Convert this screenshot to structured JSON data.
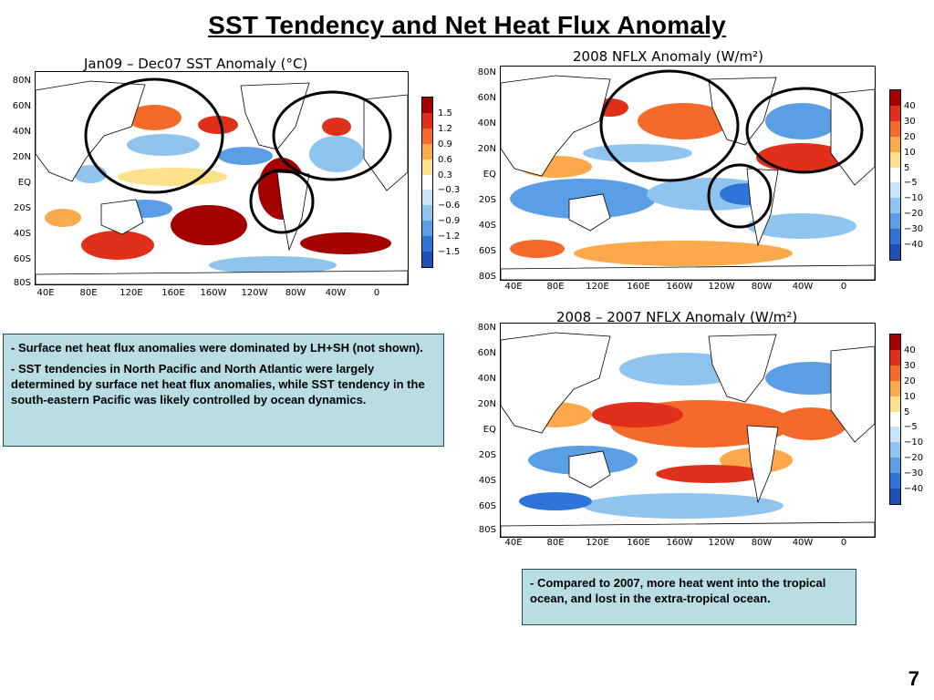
{
  "slide": {
    "title": "SST Tendency and Net Heat Flux Anomaly",
    "page_number": "7"
  },
  "maps": {
    "sst": {
      "title": "Jan09 – Dec07 SST Anomaly (°C)",
      "yticks": [
        "80N",
        "60N",
        "40N",
        "20N",
        "EQ",
        "20S",
        "40S",
        "60S",
        "80S"
      ],
      "xticks": [
        "40E",
        "80E",
        "120E",
        "160E",
        "160W",
        "120W",
        "80W",
        "40W",
        "0"
      ],
      "colorbar_labels": [
        "1.5",
        "1.2",
        "0.9",
        "0.6",
        "0.3",
        "−0.3",
        "−0.6",
        "−0.9",
        "−1.2",
        "−1.5"
      ]
    },
    "nflx2008": {
      "title": "2008 NFLX Anomaly (W/m²)",
      "yticks": [
        "80N",
        "60N",
        "40N",
        "20N",
        "EQ",
        "20S",
        "40S",
        "60S",
        "80S"
      ],
      "xticks": [
        "40E",
        "80E",
        "120E",
        "160E",
        "160W",
        "120W",
        "80W",
        "40W",
        "0"
      ],
      "colorbar_labels": [
        "40",
        "30",
        "20",
        "10",
        "5",
        "−5",
        "−10",
        "−20",
        "−30",
        "−40"
      ]
    },
    "nflx_diff": {
      "title": "2008 – 2007 NFLX Anomaly (W/m²)",
      "yticks": [
        "80N",
        "60N",
        "40N",
        "20N",
        "EQ",
        "20S",
        "40S",
        "60S",
        "80S"
      ],
      "xticks": [
        "40E",
        "80E",
        "120E",
        "160E",
        "160W",
        "120W",
        "80W",
        "40W",
        "0"
      ],
      "colorbar_labels": [
        "40",
        "30",
        "20",
        "10",
        "5",
        "−5",
        "−10",
        "−20",
        "−30",
        "−40"
      ]
    }
  },
  "colorbar_colors": [
    "#a50000",
    "#e0301a",
    "#f46a2a",
    "#fba94a",
    "#fde08a",
    "#ffffff",
    "#c8e4f6",
    "#8ec4ee",
    "#5a9ee6",
    "#2f74d8",
    "#1f4fb8"
  ],
  "notes": {
    "left_box": [
      "-  Surface net heat flux anomalies were dominated by LH+SH (not shown).",
      "- SST tendencies in North Pacific and North Atlantic were largely determined by surface net heat flux anomalies, while SST tendency in the south-eastern Pacific was likely controlled by ocean dynamics."
    ],
    "right_box": "- Compared to 2007, more heat went into the tropical ocean, and lost in the extra-tropical ocean."
  }
}
